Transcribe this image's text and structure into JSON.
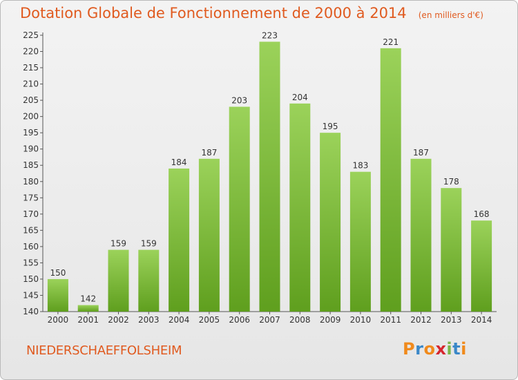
{
  "header": {
    "title": "Dotation Globale de Fonctionnement de 2000 à 2014",
    "subtitle": "(en milliers d'€)"
  },
  "footer": {
    "place_name": "NIEDERSCHAEFFOLSHEIM",
    "logo_text": "Proxiti"
  },
  "colors": {
    "title": "#e05a1f",
    "bar_top": "#9bd25a",
    "bar_bottom": "#5f9f1e",
    "logo": [
      "#f08a1c",
      "#3b88c8",
      "#f08a1c",
      "#d6262e",
      "#7ab648",
      "#3b88c8",
      "#f08a1c"
    ]
  },
  "chart_data": {
    "type": "bar",
    "categories": [
      "2000",
      "2001",
      "2002",
      "2003",
      "2004",
      "2005",
      "2006",
      "2007",
      "2008",
      "2009",
      "2010",
      "2011",
      "2012",
      "2013",
      "2014"
    ],
    "values": [
      150,
      142,
      159,
      159,
      184,
      187,
      203,
      223,
      204,
      195,
      183,
      221,
      187,
      178,
      168
    ],
    "ylim": [
      140,
      225
    ],
    "yticks": [
      140,
      145,
      150,
      155,
      160,
      165,
      170,
      175,
      180,
      185,
      190,
      195,
      200,
      205,
      210,
      215,
      220,
      225
    ],
    "grid": false
  }
}
